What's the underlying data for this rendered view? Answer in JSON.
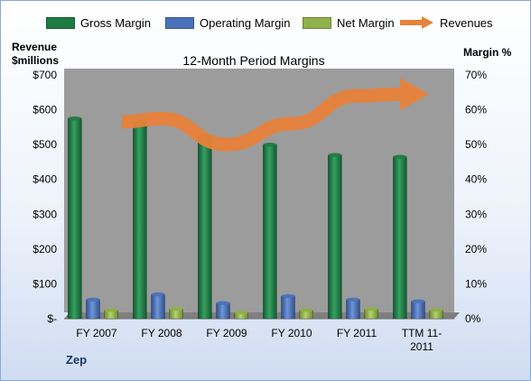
{
  "legend": [
    {
      "label": "Gross Margin",
      "color": "#1f7a44"
    },
    {
      "label": "Operating Margin",
      "color": "#4a72b8"
    },
    {
      "label": "Net Margin",
      "color": "#8fb04a"
    },
    {
      "label": "Revenues",
      "color": "#e8823a"
    }
  ],
  "axes": {
    "left_title_line1": "Revenue",
    "left_title_line2": "$millions",
    "right_title": "Margin %"
  },
  "company": "Zep",
  "chart_data": {
    "type": "bar",
    "title": "12-Month Period Margins",
    "categories": [
      "FY 2007",
      "FY 2008",
      "FY 2009",
      "FY 2010",
      "FY 2011",
      "TTM 11-2011"
    ],
    "category_lines": [
      [
        "FY 2007"
      ],
      [
        "FY 2008"
      ],
      [
        "FY 2009"
      ],
      [
        "FY 2010"
      ],
      [
        "FY 2011"
      ],
      [
        "TTM 11-",
        "2011"
      ]
    ],
    "series": [
      {
        "name": "Gross Margin",
        "axis": "right",
        "unit": "%",
        "color": "#1f7a44",
        "values": [
          57.5,
          56.5,
          52.5,
          50.0,
          47.0,
          46.5
        ]
      },
      {
        "name": "Operating Margin",
        "axis": "right",
        "unit": "%",
        "color": "#4a72b8",
        "values": [
          5.5,
          7.0,
          4.5,
          6.5,
          5.5,
          5.0
        ]
      },
      {
        "name": "Net Margin",
        "axis": "right",
        "unit": "%",
        "color": "#8fb04a",
        "values": [
          2.5,
          2.8,
          1.8,
          2.5,
          2.8,
          2.5
        ]
      },
      {
        "name": "Revenues",
        "axis": "left",
        "unit": "$M",
        "color": "#e8823a",
        "type": "line-arrow",
        "values": [
          565,
          575,
          500,
          560,
          640,
          645
        ]
      }
    ],
    "left_axis": {
      "min": 0,
      "max": 700,
      "step": 100,
      "tick_labels": [
        "$-",
        "$100",
        "$200",
        "$300",
        "$400",
        "$500",
        "$600",
        "$700"
      ]
    },
    "right_axis": {
      "min": 0,
      "max": 70,
      "step": 10,
      "tick_labels": [
        "0%",
        "10%",
        "20%",
        "30%",
        "40%",
        "50%",
        "60%",
        "70%"
      ]
    },
    "grid": false,
    "legend_position": "top"
  }
}
